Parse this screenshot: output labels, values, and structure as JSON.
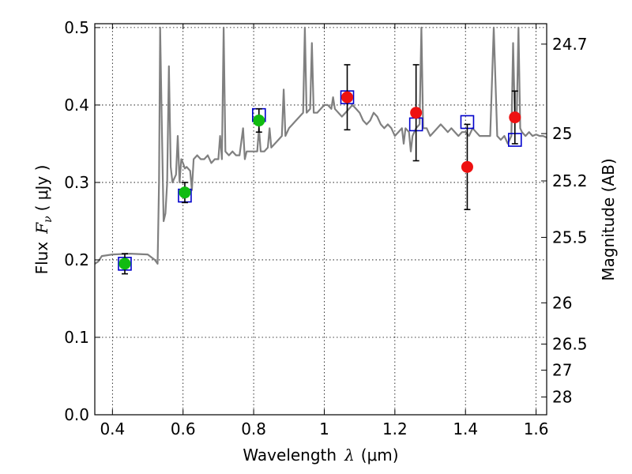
{
  "chart_data": {
    "type": "scatter",
    "xlabel_main": "Wavelength",
    "xlabel_var": "λ",
    "xlabel_unit": "(μm)",
    "ylabel_main": "Flux",
    "ylabel_var": "F",
    "ylabel_sub": "ν",
    "ylabel_unit": "( μJy )",
    "y2label": "Magnitude (AB)",
    "xlim": [
      0.35,
      1.63
    ],
    "ylim": [
      0.0,
      0.505
    ],
    "grid": true,
    "xticks": [
      0.4,
      0.6,
      0.8,
      1.0,
      1.2,
      1.4,
      1.6
    ],
    "xtick_labels": [
      "0.4",
      "0.6",
      "0.8",
      "1",
      "1.2",
      "1.4",
      "1.6"
    ],
    "yticks": [
      0.0,
      0.1,
      0.2,
      0.3,
      0.4,
      0.5
    ],
    "ytick_labels": [
      "0.0",
      "0.1",
      "0.2",
      "0.3",
      "0.4",
      "0.5"
    ],
    "y2ticks": [
      24.7,
      25.0,
      25.2,
      25.5,
      26.0,
      26.5,
      27.0,
      28.0
    ],
    "y2tick_labels": [
      "24.7",
      "25",
      "25.2",
      "25.5",
      "26",
      "26.5",
      "27",
      "28"
    ],
    "colors": {
      "template": "#808080",
      "model_box": "#0000cc",
      "optical": "#11bb11",
      "nir": "#ee1111",
      "errorbar": "#000000"
    },
    "series": [
      {
        "style": "gray-spectrum-line",
        "points": [
          [
            0.35,
            0.195
          ],
          [
            0.36,
            0.198
          ],
          [
            0.37,
            0.205
          ],
          [
            0.4,
            0.207
          ],
          [
            0.45,
            0.208
          ],
          [
            0.5,
            0.207
          ],
          [
            0.52,
            0.2
          ],
          [
            0.528,
            0.195
          ],
          [
            0.532,
            0.3
          ],
          [
            0.535,
            0.5
          ],
          [
            0.54,
            0.37
          ],
          [
            0.545,
            0.25
          ],
          [
            0.55,
            0.26
          ],
          [
            0.555,
            0.3
          ],
          [
            0.56,
            0.45
          ],
          [
            0.565,
            0.32
          ],
          [
            0.57,
            0.3
          ],
          [
            0.58,
            0.31
          ],
          [
            0.585,
            0.36
          ],
          [
            0.59,
            0.3
          ],
          [
            0.595,
            0.33
          ],
          [
            0.6,
            0.325
          ],
          [
            0.605,
            0.318
          ],
          [
            0.61,
            0.32
          ],
          [
            0.62,
            0.315
          ],
          [
            0.625,
            0.29
          ],
          [
            0.63,
            0.33
          ],
          [
            0.64,
            0.335
          ],
          [
            0.65,
            0.33
          ],
          [
            0.66,
            0.33
          ],
          [
            0.67,
            0.335
          ],
          [
            0.68,
            0.325
          ],
          [
            0.69,
            0.33
          ],
          [
            0.7,
            0.33
          ],
          [
            0.705,
            0.36
          ],
          [
            0.71,
            0.33
          ],
          [
            0.715,
            0.5
          ],
          [
            0.72,
            0.34
          ],
          [
            0.73,
            0.335
          ],
          [
            0.74,
            0.34
          ],
          [
            0.75,
            0.335
          ],
          [
            0.76,
            0.335
          ],
          [
            0.77,
            0.37
          ],
          [
            0.775,
            0.33
          ],
          [
            0.78,
            0.34
          ],
          [
            0.79,
            0.34
          ],
          [
            0.8,
            0.34
          ],
          [
            0.81,
            0.34
          ],
          [
            0.815,
            0.37
          ],
          [
            0.82,
            0.34
          ],
          [
            0.83,
            0.34
          ],
          [
            0.84,
            0.345
          ],
          [
            0.845,
            0.37
          ],
          [
            0.85,
            0.345
          ],
          [
            0.86,
            0.35
          ],
          [
            0.87,
            0.355
          ],
          [
            0.88,
            0.36
          ],
          [
            0.885,
            0.42
          ],
          [
            0.89,
            0.36
          ],
          [
            0.9,
            0.37
          ],
          [
            0.91,
            0.375
          ],
          [
            0.92,
            0.38
          ],
          [
            0.93,
            0.385
          ],
          [
            0.94,
            0.39
          ],
          [
            0.945,
            0.5
          ],
          [
            0.95,
            0.39
          ],
          [
            0.96,
            0.395
          ],
          [
            0.965,
            0.48
          ],
          [
            0.97,
            0.39
          ],
          [
            0.98,
            0.39
          ],
          [
            0.99,
            0.395
          ],
          [
            1.0,
            0.4
          ],
          [
            1.01,
            0.4
          ],
          [
            1.02,
            0.395
          ],
          [
            1.025,
            0.41
          ],
          [
            1.03,
            0.395
          ],
          [
            1.04,
            0.39
          ],
          [
            1.05,
            0.385
          ],
          [
            1.06,
            0.39
          ],
          [
            1.07,
            0.395
          ],
          [
            1.08,
            0.4
          ],
          [
            1.09,
            0.395
          ],
          [
            1.1,
            0.39
          ],
          [
            1.11,
            0.38
          ],
          [
            1.12,
            0.375
          ],
          [
            1.13,
            0.38
          ],
          [
            1.14,
            0.39
          ],
          [
            1.15,
            0.385
          ],
          [
            1.16,
            0.375
          ],
          [
            1.17,
            0.37
          ],
          [
            1.18,
            0.375
          ],
          [
            1.19,
            0.37
          ],
          [
            1.2,
            0.36
          ],
          [
            1.21,
            0.365
          ],
          [
            1.22,
            0.37
          ],
          [
            1.225,
            0.35
          ],
          [
            1.23,
            0.37
          ],
          [
            1.24,
            0.365
          ],
          [
            1.245,
            0.34
          ],
          [
            1.25,
            0.36
          ],
          [
            1.26,
            0.37
          ],
          [
            1.27,
            0.375
          ],
          [
            1.275,
            0.5
          ],
          [
            1.28,
            0.37
          ],
          [
            1.29,
            0.37
          ],
          [
            1.3,
            0.36
          ],
          [
            1.31,
            0.365
          ],
          [
            1.32,
            0.37
          ],
          [
            1.33,
            0.375
          ],
          [
            1.34,
            0.37
          ],
          [
            1.35,
            0.365
          ],
          [
            1.36,
            0.37
          ],
          [
            1.37,
            0.365
          ],
          [
            1.38,
            0.36
          ],
          [
            1.39,
            0.365
          ],
          [
            1.4,
            0.365
          ],
          [
            1.41,
            0.36
          ],
          [
            1.42,
            0.37
          ],
          [
            1.43,
            0.365
          ],
          [
            1.44,
            0.36
          ],
          [
            1.45,
            0.36
          ],
          [
            1.46,
            0.36
          ],
          [
            1.47,
            0.36
          ],
          [
            1.48,
            0.5
          ],
          [
            1.49,
            0.36
          ],
          [
            1.5,
            0.355
          ],
          [
            1.51,
            0.36
          ],
          [
            1.52,
            0.35
          ],
          [
            1.53,
            0.36
          ],
          [
            1.535,
            0.48
          ],
          [
            1.54,
            0.38
          ],
          [
            1.545,
            0.38
          ],
          [
            1.55,
            0.5
          ],
          [
            1.555,
            0.37
          ],
          [
            1.56,
            0.365
          ],
          [
            1.57,
            0.36
          ],
          [
            1.58,
            0.365
          ],
          [
            1.59,
            0.36
          ],
          [
            1.6,
            0.362
          ],
          [
            1.61,
            0.36
          ],
          [
            1.62,
            0.36
          ],
          [
            1.63,
            0.358
          ]
        ]
      },
      {
        "style": "blue-open-square",
        "x": [
          0.435,
          0.605,
          0.815,
          1.065,
          1.26,
          1.405,
          1.54
        ],
        "y": [
          0.195,
          0.283,
          0.387,
          0.41,
          0.375,
          0.378,
          0.355
        ]
      },
      {
        "style": "green-filled-circle",
        "x": [
          0.435,
          0.605,
          0.815
        ],
        "y": [
          0.195,
          0.287,
          0.38
        ],
        "yerr": [
          0.013,
          0.013,
          0.015
        ]
      },
      {
        "style": "red-filled-circle",
        "x": [
          1.065,
          1.26,
          1.405,
          1.54
        ],
        "y": [
          0.41,
          0.39,
          0.32,
          0.384
        ],
        "yerr": [
          0.042,
          0.062,
          0.055,
          0.034
        ]
      }
    ]
  }
}
